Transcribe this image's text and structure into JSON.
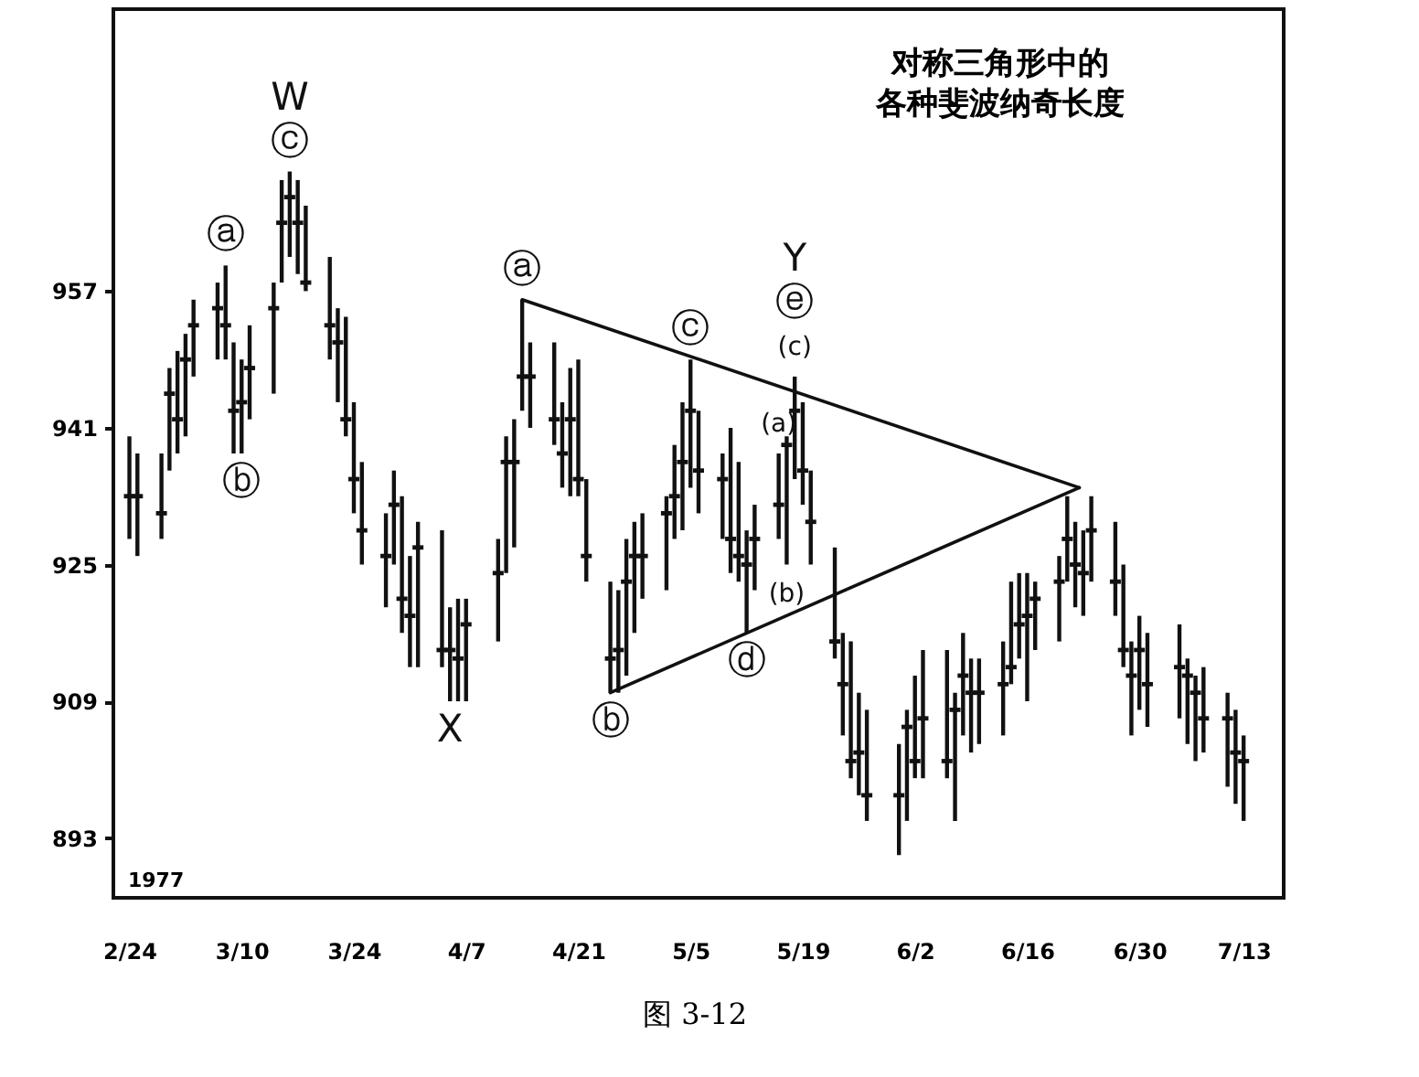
{
  "chart_data": {
    "type": "scatter",
    "title": "对称三角形中的各种斐波纳奇长度",
    "series": [
      {
        "type": "scatter",
        "color": "#111111",
        "x": [
          "1977-02-24",
          "1977-02-25",
          "1977-02-28",
          "1977-03-01",
          "1977-03-02",
          "1977-03-03",
          "1977-03-04",
          "1977-03-07",
          "1977-03-08",
          "1977-03-09",
          "1977-03-10",
          "1977-03-11",
          "1977-03-14",
          "1977-03-15",
          "1977-03-16",
          "1977-03-17",
          "1977-03-18",
          "1977-03-21",
          "1977-03-22",
          "1977-03-23",
          "1977-03-24",
          "1977-03-25",
          "1977-03-28",
          "1977-03-29",
          "1977-03-30",
          "1977-03-31",
          "1977-04-01",
          "1977-04-04",
          "1977-04-05",
          "1977-04-06",
          "1977-04-07",
          "1977-04-11",
          "1977-04-12",
          "1977-04-13",
          "1977-04-14",
          "1977-04-15",
          "1977-04-18",
          "1977-04-19",
          "1977-04-20",
          "1977-04-21",
          "1977-04-22",
          "1977-04-25",
          "1977-04-26",
          "1977-04-27",
          "1977-04-28",
          "1977-04-29",
          "1977-05-02",
          "1977-05-03",
          "1977-05-04",
          "1977-05-05",
          "1977-05-06",
          "1977-05-09",
          "1977-05-10",
          "1977-05-11",
          "1977-05-12",
          "1977-05-13",
          "1977-05-16",
          "1977-05-17",
          "1977-05-18",
          "1977-05-19",
          "1977-05-20",
          "1977-05-23",
          "1977-05-24",
          "1977-05-25",
          "1977-05-26",
          "1977-05-27",
          "1977-05-31",
          "1977-06-01",
          "1977-06-02",
          "1977-06-03",
          "1977-06-06",
          "1977-06-07",
          "1977-06-08",
          "1977-06-09",
          "1977-06-10",
          "1977-06-13",
          "1977-06-14",
          "1977-06-15",
          "1977-06-16",
          "1977-06-17",
          "1977-06-20",
          "1977-06-21",
          "1977-06-22",
          "1977-06-23",
          "1977-06-24",
          "1977-06-27",
          "1977-06-28",
          "1977-06-29",
          "1977-06-30",
          "1977-07-01",
          "1977-07-05",
          "1977-07-06",
          "1977-07-07",
          "1977-07-08",
          "1977-07-11",
          "1977-07-12",
          "1977-07-13"
        ],
        "values": [
          933,
          933,
          931,
          945,
          942,
          949,
          953,
          955,
          953,
          943,
          944,
          948,
          955,
          965,
          968,
          965,
          958,
          953,
          951,
          942,
          935,
          929,
          926,
          932,
          921,
          919,
          927,
          915,
          915,
          914,
          918,
          924,
          937,
          937,
          947,
          947,
          942,
          938,
          942,
          935,
          926,
          914,
          915,
          923,
          926,
          926,
          931,
          933,
          937,
          943,
          936,
          935,
          928,
          926,
          925,
          928,
          932,
          939,
          943,
          936,
          930,
          916,
          911,
          902,
          903,
          898,
          898,
          906,
          902,
          907,
          902,
          908,
          912,
          910,
          910,
          911,
          913,
          918,
          919,
          921,
          923,
          928,
          925,
          924,
          929,
          923,
          915,
          912,
          915,
          911,
          913,
          912,
          910,
          907,
          907,
          903,
          902
        ],
        "errors": [
          [
            928,
            940
          ],
          [
            926,
            938
          ],
          [
            928,
            938
          ],
          [
            936,
            948
          ],
          [
            938,
            950
          ],
          [
            940,
            952
          ],
          [
            947,
            956
          ],
          [
            949,
            958
          ],
          [
            949,
            960
          ],
          [
            938,
            951
          ],
          [
            938,
            949
          ],
          [
            942,
            953
          ],
          [
            945,
            958
          ],
          [
            958,
            970
          ],
          [
            961,
            971
          ],
          [
            959,
            970
          ],
          [
            957,
            967
          ],
          [
            949,
            961
          ],
          [
            944,
            955
          ],
          [
            940,
            954
          ],
          [
            931,
            944
          ],
          [
            925,
            937
          ],
          [
            920,
            931
          ],
          [
            925,
            936
          ],
          [
            917,
            933
          ],
          [
            913,
            926
          ],
          [
            913,
            930
          ],
          [
            913,
            929
          ],
          [
            909,
            920
          ],
          [
            909,
            921
          ],
          [
            909,
            921
          ],
          [
            916,
            928
          ],
          [
            924,
            940
          ],
          [
            927,
            942
          ],
          [
            943,
            956
          ],
          [
            941,
            951
          ],
          [
            939,
            951
          ],
          [
            934,
            944
          ],
          [
            933,
            948
          ],
          [
            933,
            949
          ],
          [
            923,
            935
          ],
          [
            910,
            923
          ],
          [
            910,
            922
          ],
          [
            912,
            928
          ],
          [
            917,
            930
          ],
          [
            921,
            931
          ],
          [
            922,
            933
          ],
          [
            928,
            939
          ],
          [
            929,
            944
          ],
          [
            934,
            949
          ],
          [
            931,
            943
          ],
          [
            928,
            938
          ],
          [
            924,
            941
          ],
          [
            923,
            937
          ],
          [
            917,
            929
          ],
          [
            922,
            932
          ],
          [
            928,
            938
          ],
          [
            925,
            940
          ],
          [
            935,
            947
          ],
          [
            932,
            944
          ],
          [
            925,
            936
          ],
          [
            914,
            927
          ],
          [
            905,
            917
          ],
          [
            900,
            916
          ],
          [
            898,
            910
          ],
          [
            895,
            908
          ],
          [
            891,
            904
          ],
          [
            895,
            908
          ],
          [
            900,
            912
          ],
          [
            900,
            915
          ],
          [
            900,
            915
          ],
          [
            895,
            910
          ],
          [
            905,
            917
          ],
          [
            903,
            914
          ],
          [
            904,
            914
          ],
          [
            905,
            916
          ],
          [
            911,
            923
          ],
          [
            914,
            924
          ],
          [
            909,
            924
          ],
          [
            915,
            923
          ],
          [
            916,
            926
          ],
          [
            923,
            933
          ],
          [
            920,
            930
          ],
          [
            919,
            929
          ],
          [
            923,
            933
          ],
          [
            919,
            930
          ],
          [
            913,
            925
          ],
          [
            905,
            916
          ],
          [
            908,
            919
          ],
          [
            906,
            917
          ],
          [
            907,
            918
          ],
          [
            904,
            914
          ],
          [
            902,
            912
          ],
          [
            903,
            913
          ],
          [
            899,
            910
          ],
          [
            897,
            908
          ],
          [
            895,
            905
          ]
        ]
      },
      {
        "type": "line",
        "color": "#111111",
        "x": [
          "1977-04-14",
          "1977-06-22T12:00"
        ],
        "values": [
          956,
          934
        ]
      },
      {
        "type": "line",
        "color": "#111111",
        "x": [
          "1977-04-25",
          "1977-06-22T12:00"
        ],
        "values": [
          910,
          934
        ]
      }
    ],
    "xlim": [
      "1977-02-22",
      "1977-07-18"
    ],
    "xticks": [
      {
        "value": "1977-02-24",
        "label": "2/24"
      },
      {
        "value": "1977-03-10",
        "label": "3/10"
      },
      {
        "value": "1977-03-24",
        "label": "3/24"
      },
      {
        "value": "1977-04-07",
        "label": "4/7"
      },
      {
        "value": "1977-04-21",
        "label": "4/21"
      },
      {
        "value": "1977-05-05",
        "label": "5/5"
      },
      {
        "value": "1977-05-19",
        "label": "5/19"
      },
      {
        "value": "1977-06-02",
        "label": "6/2"
      },
      {
        "value": "1977-06-16",
        "label": "6/16"
      },
      {
        "value": "1977-06-30",
        "label": "6/30"
      },
      {
        "value": "1977-07-13",
        "label": "7/13"
      }
    ],
    "ylim": [
      886,
      990
    ],
    "yticks": [
      893,
      909,
      925,
      941,
      957
    ],
    "annotations": [
      {
        "text": "ⓒ",
        "x": "1977-03-16",
        "y": 971
      },
      {
        "text": "W",
        "x": "1977-03-16",
        "y": 971
      },
      {
        "text": "ⓐ",
        "x": "1977-03-08",
        "y": 960
      },
      {
        "text": "ⓑ",
        "x": "1977-03-10",
        "y": 938
      },
      {
        "text": "X",
        "x": "1977-04-05",
        "y": 909
      },
      {
        "text": "ⓐ",
        "x": "1977-04-14",
        "y": 956
      },
      {
        "text": "ⓑ",
        "x": "1977-04-25",
        "y": 910
      },
      {
        "text": "ⓒ",
        "x": "1977-05-05",
        "y": 949
      },
      {
        "text": "ⓓ",
        "x": "1977-05-12",
        "y": 917
      },
      {
        "text": "(c)",
        "x": "1977-05-18",
        "y": 947
      },
      {
        "text": "ⓔ",
        "x": "1977-05-18",
        "y": 947
      },
      {
        "text": "Y",
        "x": "1977-05-18",
        "y": 947
      },
      {
        "text": "(a)",
        "x": "1977-05-16",
        "y": 938
      },
      {
        "text": "(b)",
        "x": "1977-05-17",
        "y": 925
      },
      "1977",
      "图 3-12"
    ]
  }
}
